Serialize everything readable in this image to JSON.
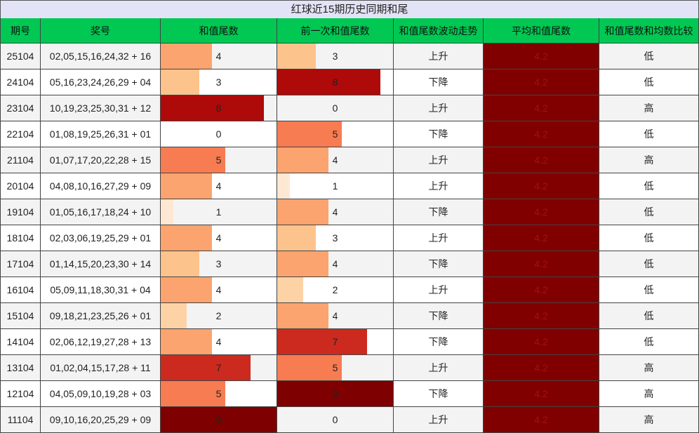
{
  "title": "红球近15期历史同期和尾",
  "table": {
    "header": [
      "期号",
      "奖号",
      "和值尾数",
      "前一次和值尾数",
      "和值尾数波动走势",
      "平均和值尾数",
      "和值尾数和均数比较"
    ],
    "rows": [
      [
        "25104",
        "02,05,15,16,24,32 + 16",
        4,
        3,
        "上升",
        4.2,
        "低"
      ],
      [
        "24104",
        "05,16,23,24,26,29 + 04",
        3,
        8,
        "下降",
        4.2,
        "低"
      ],
      [
        "23104",
        "10,19,23,25,30,31 + 12",
        8,
        0,
        "上升",
        4.2,
        "高"
      ],
      [
        "22104",
        "01,08,19,25,26,31 + 01",
        0,
        5,
        "下降",
        4.2,
        "低"
      ],
      [
        "21104",
        "01,07,17,20,22,28 + 15",
        5,
        4,
        "上升",
        4.2,
        "高"
      ],
      [
        "20104",
        "04,08,10,16,27,29 + 09",
        4,
        1,
        "上升",
        4.2,
        "低"
      ],
      [
        "19104",
        "01,05,16,17,18,24 + 10",
        1,
        4,
        "下降",
        4.2,
        "低"
      ],
      [
        "18104",
        "02,03,06,19,25,29 + 01",
        4,
        3,
        "上升",
        4.2,
        "低"
      ],
      [
        "17104",
        "01,14,15,20,23,30 + 14",
        3,
        4,
        "下降",
        4.2,
        "低"
      ],
      [
        "16104",
        "05,09,11,18,30,31 + 04",
        4,
        2,
        "上升",
        4.2,
        "低"
      ],
      [
        "15104",
        "09,18,21,23,25,26 + 01",
        2,
        4,
        "下降",
        4.2,
        "低"
      ],
      [
        "14104",
        "02,06,12,19,27,28 + 13",
        4,
        7,
        "下降",
        4.2,
        "低"
      ],
      [
        "13104",
        "01,02,04,15,17,28 + 11",
        7,
        5,
        "上升",
        4.2,
        "高"
      ],
      [
        "12104",
        "04,05,09,10,19,28 + 03",
        5,
        9,
        "下降",
        4.2,
        "高"
      ],
      [
        "11104",
        "09,10,16,20,25,29 + 09",
        9,
        0,
        "上升",
        4.2,
        "高"
      ]
    ],
    "bar_colors": [
      "#ffffff",
      "#fee8d4",
      "#fdd3a6",
      "#fdc38c",
      "#fca46f",
      "#f77c52",
      "#e8503a",
      "#cc2a1e",
      "#ae0a0a",
      "#7f0000"
    ],
    "average_color": "#800000"
  }
}
